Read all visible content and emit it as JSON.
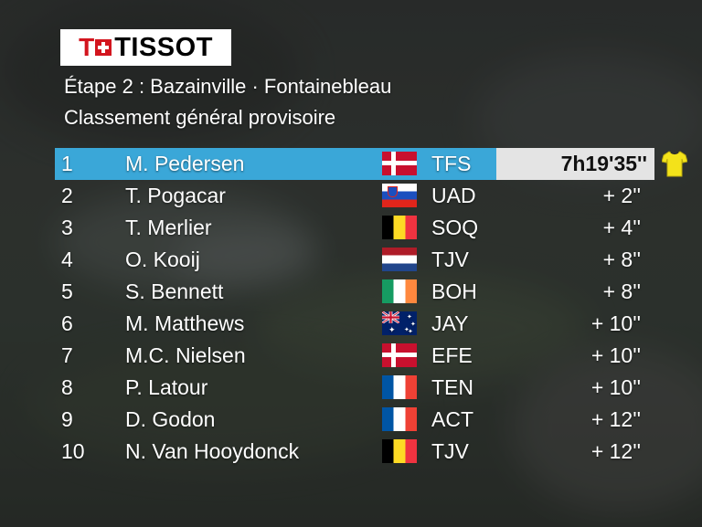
{
  "logo": {
    "text": "TISSOT",
    "mark": "T"
  },
  "header": {
    "stage": "Étape 2 : Bazainville · Fontainebleau",
    "classification": "Classement général provisoire"
  },
  "colors": {
    "leader_bar": "#3aa7d8",
    "leader_time_box": "#e4e4e4",
    "yellow_jersey": "#f3e21a",
    "logo_red": "#d3151e"
  },
  "standings": [
    {
      "pos": "1",
      "name": "M. Pedersen",
      "flag": "denmark",
      "team": "TFS",
      "gap": "7h19'35''"
    },
    {
      "pos": "2",
      "name": "T. Pogacar",
      "flag": "slovenia",
      "team": "UAD",
      "gap": "+  2''"
    },
    {
      "pos": "3",
      "name": "T. Merlier",
      "flag": "belgium",
      "team": "SOQ",
      "gap": "+  4''"
    },
    {
      "pos": "4",
      "name": "O. Kooij",
      "flag": "netherlands",
      "team": "TJV",
      "gap": "+  8''"
    },
    {
      "pos": "5",
      "name": "S. Bennett",
      "flag": "ireland",
      "team": "BOH",
      "gap": "+  8''"
    },
    {
      "pos": "6",
      "name": "M. Matthews",
      "flag": "australia",
      "team": "JAY",
      "gap": "+ 10''"
    },
    {
      "pos": "7",
      "name": "M.C. Nielsen",
      "flag": "denmark",
      "team": "EFE",
      "gap": "+ 10''"
    },
    {
      "pos": "8",
      "name": "P. Latour",
      "flag": "france",
      "team": "TEN",
      "gap": "+ 10''"
    },
    {
      "pos": "9",
      "name": "D. Godon",
      "flag": "france",
      "team": "ACT",
      "gap": "+ 12''"
    },
    {
      "pos": "10",
      "name": "N. Van Hooydonck",
      "flag": "belgium",
      "team": "TJV",
      "gap": "+ 12''"
    }
  ],
  "leader_icon": "yellow-jersey-icon"
}
